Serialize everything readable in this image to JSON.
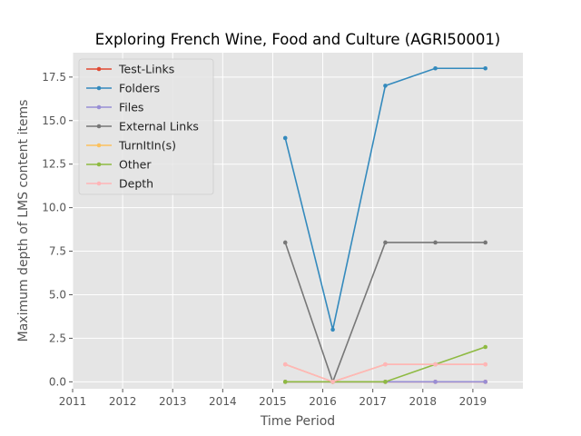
{
  "chart_data": {
    "type": "line",
    "title": "Exploring French Wine, Food and Culture (AGRI50001)",
    "xlabel": "Time Period",
    "ylabel": "Maximum depth of LMS content items",
    "xlim": [
      2011,
      2020
    ],
    "ylim": [
      -0.4,
      18.9
    ],
    "xticks": [
      "2011",
      "2012",
      "2013",
      "2014",
      "2015",
      "2016",
      "2017",
      "2018",
      "2019"
    ],
    "yticks": [
      "0.0",
      "2.5",
      "5.0",
      "7.5",
      "10.0",
      "12.5",
      "15.0",
      "17.5"
    ],
    "grid": true,
    "legend_position": "top-left",
    "x": [
      2015.25,
      2016.2,
      2017.25,
      2018.25,
      2019.25
    ],
    "series": [
      {
        "name": "Test-Links",
        "color": "#e24a33",
        "values": [
          0,
          0,
          0,
          0,
          0
        ]
      },
      {
        "name": "Folders",
        "color": "#348abd",
        "values": [
          14,
          3,
          17,
          18,
          18
        ]
      },
      {
        "name": "Files",
        "color": "#988ed5",
        "values": [
          0,
          0,
          0,
          0,
          0
        ]
      },
      {
        "name": "External Links",
        "color": "#777777",
        "values": [
          8,
          0,
          8,
          8,
          8
        ]
      },
      {
        "name": "TurnItIn(s)",
        "color": "#fbc15e",
        "values": [
          1,
          0,
          1,
          1,
          1
        ]
      },
      {
        "name": "Other",
        "color": "#8eba42",
        "values": [
          0,
          0,
          0,
          1,
          2
        ]
      },
      {
        "name": "Depth",
        "color": "#ffb5b8",
        "values": [
          1,
          0,
          1,
          1,
          1
        ]
      }
    ]
  }
}
